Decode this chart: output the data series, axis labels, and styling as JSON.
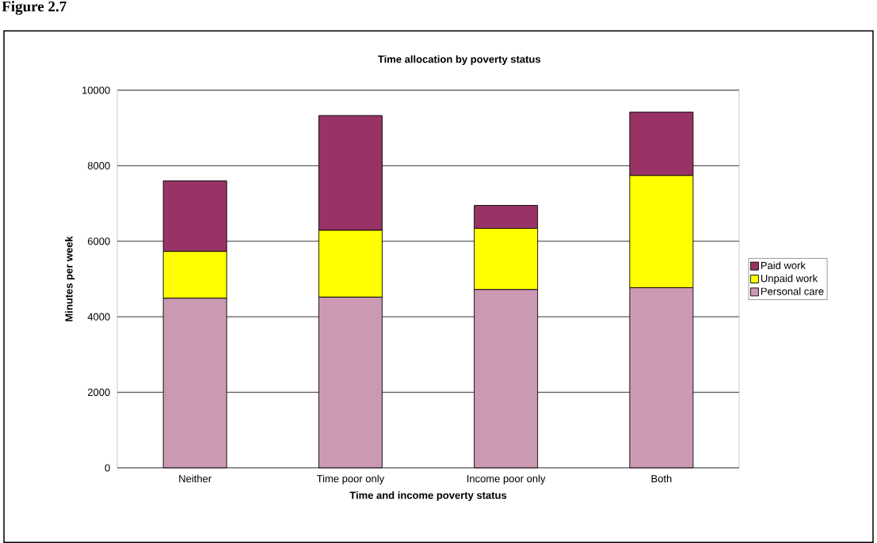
{
  "chart_data": {
    "type": "bar",
    "stacked": true,
    "title": "Time allocation by poverty status",
    "xlabel": "Time and income poverty status",
    "ylabel": "Minutes per week",
    "annotations": [
      "Figure 2.7"
    ],
    "categories": [
      "Neither",
      "Time poor only",
      "Income poor only",
      "Both"
    ],
    "series": [
      {
        "name": "Personal care",
        "color": "#cc99b3",
        "values": [
          4490,
          4520,
          4720,
          4770
        ]
      },
      {
        "name": "Unpaid work",
        "color": "#ffff00",
        "values": [
          1240,
          1770,
          1620,
          2970
        ]
      },
      {
        "name": "Paid work",
        "color": "#993366",
        "values": [
          1870,
          3040,
          610,
          1680
        ]
      }
    ],
    "ylim": [
      0,
      10000
    ],
    "yticks": [
      0,
      2000,
      4000,
      6000,
      8000,
      10000
    ],
    "grid": "y",
    "legend": "right"
  }
}
